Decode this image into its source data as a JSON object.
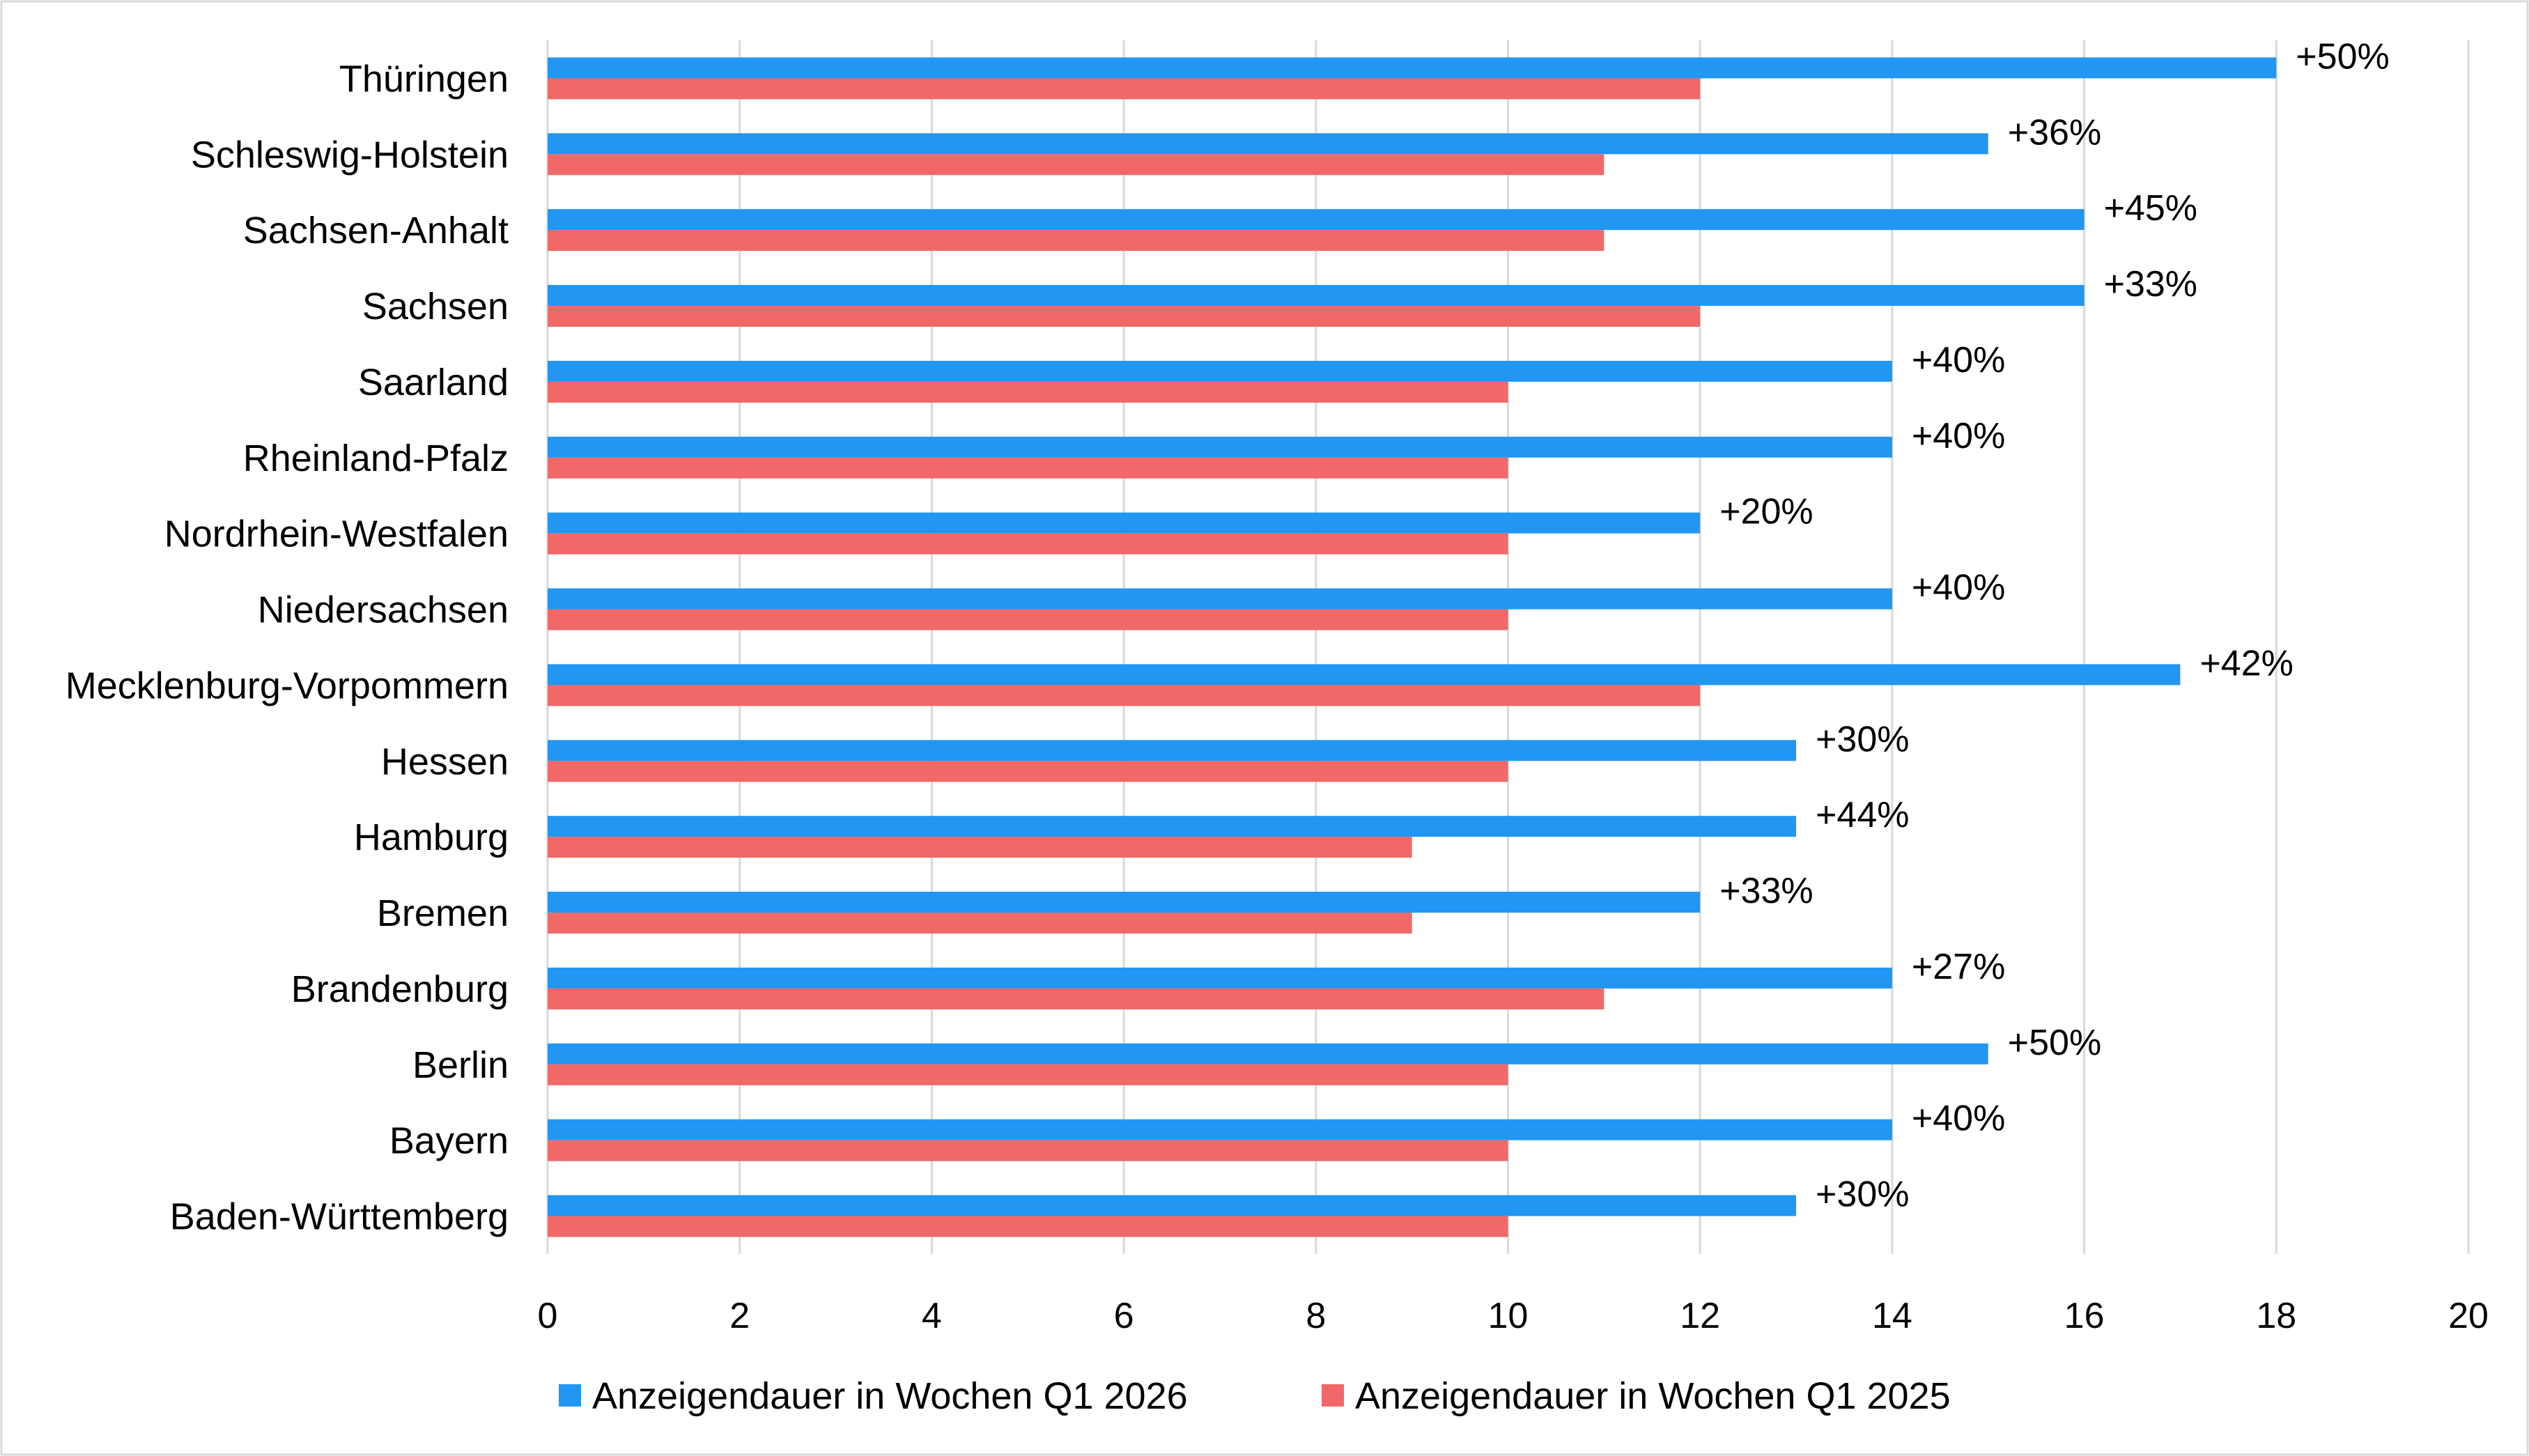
{
  "chart_data": {
    "type": "bar",
    "orientation": "horizontal",
    "categories": [
      "Thüringen",
      "Schleswig-Holstein",
      "Sachsen-Anhalt",
      "Sachsen",
      "Saarland",
      "Rheinland-Pfalz",
      "Nordrhein-Westfalen",
      "Niedersachsen",
      "Mecklenburg-Vorpommern",
      "Hessen",
      "Hamburg",
      "Bremen",
      "Brandenburg",
      "Berlin",
      "Bayern",
      "Baden-Württemberg"
    ],
    "series": [
      {
        "name": "Anzeigendauer in Wochen Q1 2026",
        "color": "#2196f3",
        "values": [
          18,
          15,
          16,
          16,
          14,
          14,
          12,
          14,
          17,
          13,
          13,
          12,
          14,
          15,
          14,
          13
        ],
        "data_labels": [
          "+50%",
          "+36%",
          "+45%",
          "+33%",
          "+40%",
          "+40%",
          "+20%",
          "+40%",
          "+42%",
          "+30%",
          "+44%",
          "+33%",
          "+27%",
          "+50%",
          "+40%",
          "+30%"
        ]
      },
      {
        "name": "Anzeigendauer in Wochen Q1 2025",
        "color": "#f06868",
        "values": [
          12,
          11,
          11,
          12,
          10,
          10,
          10,
          10,
          12,
          10,
          9,
          9,
          11,
          10,
          10,
          10
        ]
      }
    ],
    "x_ticks": [
      "0",
      "2",
      "4",
      "6",
      "8",
      "10",
      "12",
      "14",
      "16",
      "18",
      "20"
    ],
    "xlim": [
      0,
      20
    ],
    "grid": "vertical",
    "legend_position": "bottom",
    "title": "",
    "xlabel": "",
    "ylabel": ""
  }
}
